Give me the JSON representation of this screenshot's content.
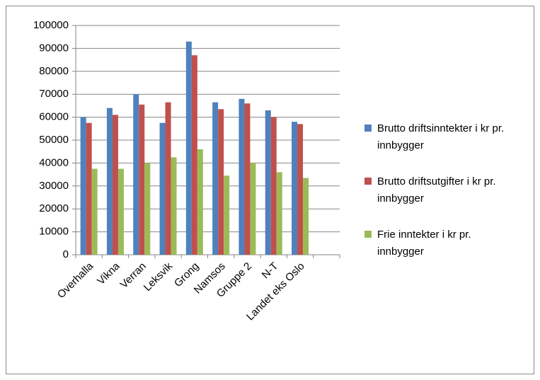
{
  "chart_data": {
    "type": "bar",
    "categories": [
      "Overhalla",
      "Vikna",
      "Verran",
      "Leksvik",
      "Grong",
      "Namsos",
      "Gruppe 2",
      "N-T",
      "Landet eks Oslo",
      null
    ],
    "series": [
      {
        "name": "Brutto driftsinntekter i kr pr. innbygger",
        "color": "#4f81bd",
        "values": [
          60000,
          64000,
          70000,
          57500,
          93000,
          66500,
          68000,
          63000,
          58000,
          null
        ]
      },
      {
        "name": "Brutto driftsutgifter i kr pr. innbygger",
        "color": "#c0504d",
        "values": [
          57500,
          61000,
          65500,
          66500,
          87000,
          63500,
          66000,
          60000,
          57000,
          null
        ]
      },
      {
        "name": "Frie inntekter i kr pr. innbygger",
        "color": "#9bbb59",
        "values": [
          37500,
          37500,
          40000,
          42500,
          46000,
          34500,
          40000,
          36000,
          33500,
          null
        ]
      }
    ],
    "ylim": [
      0,
      100000
    ],
    "yticks": [
      0,
      10000,
      20000,
      30000,
      40000,
      50000,
      60000,
      70000,
      80000,
      90000,
      100000
    ],
    "grid": true,
    "legend": "right"
  }
}
